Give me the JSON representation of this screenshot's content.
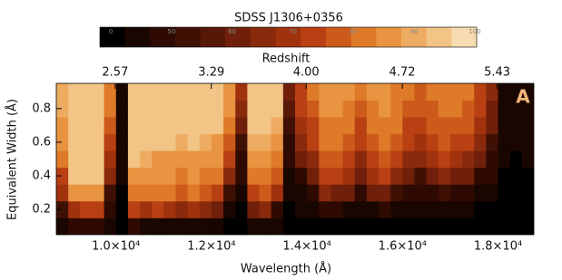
{
  "chart_data": {
    "type": "heatmap",
    "title": "SDSS J1306+0356",
    "x_label": "Wavelength (Å)",
    "y_label": "Equivalent Width (Å)",
    "x2_label": "Redshift",
    "annotation": "A",
    "xlim": [
      8750,
      18750
    ],
    "ylim": [
      0.05,
      0.95
    ],
    "x2lim": [
      2.129,
      5.705
    ],
    "xticks": [
      {
        "value": 10000,
        "label": "1.0×10⁴"
      },
      {
        "value": 12000,
        "label": "1.2×10⁴"
      },
      {
        "value": 14000,
        "label": "1.4×10⁴"
      },
      {
        "value": 16000,
        "label": "1.6×10⁴"
      },
      {
        "value": 18000,
        "label": "1.8×10⁴"
      }
    ],
    "x2ticks": [
      {
        "value": 2.57,
        "label": "2.57"
      },
      {
        "value": 3.29,
        "label": "3.29"
      },
      {
        "value": 4.0,
        "label": "4.00"
      },
      {
        "value": 4.72,
        "label": "4.72"
      },
      {
        "value": 5.43,
        "label": "5.43"
      }
    ],
    "yticks": [
      0.2,
      0.4,
      0.6,
      0.8
    ],
    "colorbar": {
      "ticks": [
        0,
        50,
        60,
        70,
        80,
        90,
        100
      ],
      "colors": [
        "#000000",
        "#1a0600",
        "#2e0a02",
        "#3f1004",
        "#581807",
        "#70200a",
        "#8a2a0c",
        "#a0320e",
        "#b94012",
        "#cc5a1a",
        "#de7a28",
        "#e89440",
        "#eeac62",
        "#f2c486",
        "#f6dcb0"
      ]
    },
    "xbins": [
      8750,
      9000,
      9250,
      9500,
      9750,
      10000,
      10250,
      10500,
      10750,
      11000,
      11250,
      11500,
      11750,
      12000,
      12250,
      12500,
      12750,
      13000,
      13250,
      13500,
      13750,
      14000,
      14250,
      14500,
      14750,
      15000,
      15250,
      15500,
      15750,
      16000,
      16250,
      16500,
      16750,
      17000,
      17250,
      17500,
      17750,
      18000,
      18250,
      18500,
      18750
    ],
    "ybins": [
      0.05,
      0.15,
      0.25,
      0.35,
      0.45,
      0.55,
      0.65,
      0.75,
      0.85,
      0.95
    ],
    "values": [
      [
        30,
        55,
        70,
        75,
        80,
        85,
        88,
        90,
        90
      ],
      [
        40,
        70,
        85,
        92,
        95,
        95,
        95,
        95,
        95
      ],
      [
        45,
        75,
        88,
        94,
        96,
        96,
        96,
        96,
        96
      ],
      [
        40,
        72,
        86,
        93,
        96,
        96,
        96,
        96,
        96
      ],
      [
        20,
        40,
        55,
        65,
        70,
        75,
        78,
        80,
        80
      ],
      [
        5,
        10,
        15,
        20,
        25,
        30,
        30,
        30,
        30
      ],
      [
        40,
        75,
        82,
        88,
        92,
        95,
        95,
        95,
        95
      ],
      [
        30,
        70,
        80,
        84,
        90,
        94,
        95,
        95,
        95
      ],
      [
        35,
        72,
        80,
        85,
        88,
        93,
        95,
        95,
        95
      ],
      [
        30,
        70,
        80,
        84,
        88,
        92,
        95,
        95,
        95
      ],
      [
        30,
        68,
        78,
        82,
        85,
        90,
        94,
        95,
        95
      ],
      [
        35,
        70,
        80,
        85,
        88,
        92,
        95,
        95,
        95
      ],
      [
        30,
        65,
        78,
        82,
        86,
        90,
        94,
        95,
        95
      ],
      [
        25,
        60,
        75,
        80,
        84,
        88,
        92,
        94,
        95
      ],
      [
        15,
        35,
        55,
        65,
        72,
        78,
        82,
        85,
        88
      ],
      [
        5,
        15,
        30,
        40,
        50,
        55,
        60,
        65,
        70
      ],
      [
        25,
        60,
        75,
        80,
        85,
        90,
        93,
        95,
        95
      ],
      [
        30,
        65,
        78,
        82,
        86,
        90,
        94,
        95,
        95
      ],
      [
        20,
        50,
        70,
        78,
        82,
        86,
        90,
        93,
        95
      ],
      [
        5,
        15,
        25,
        35,
        45,
        50,
        55,
        58,
        60
      ],
      [
        5,
        20,
        35,
        50,
        60,
        65,
        70,
        72,
        75
      ],
      [
        10,
        30,
        50,
        60,
        68,
        72,
        75,
        78,
        80
      ],
      [
        15,
        45,
        65,
        72,
        78,
        80,
        82,
        84,
        85
      ],
      [
        10,
        40,
        62,
        72,
        76,
        80,
        82,
        84,
        85
      ],
      [
        10,
        35,
        60,
        70,
        75,
        78,
        80,
        82,
        84
      ],
      [
        5,
        20,
        45,
        60,
        68,
        72,
        75,
        78,
        80
      ],
      [
        10,
        35,
        60,
        70,
        75,
        78,
        80,
        82,
        84
      ],
      [
        10,
        40,
        62,
        72,
        77,
        80,
        82,
        84,
        85
      ],
      [
        8,
        30,
        55,
        68,
        74,
        78,
        80,
        82,
        83
      ],
      [
        5,
        25,
        45,
        60,
        68,
        72,
        75,
        78,
        80
      ],
      [
        5,
        20,
        40,
        55,
        65,
        70,
        74,
        76,
        78
      ],
      [
        5,
        25,
        50,
        64,
        70,
        74,
        77,
        79,
        80
      ],
      [
        5,
        30,
        55,
        66,
        72,
        76,
        79,
        80,
        82
      ],
      [
        5,
        25,
        50,
        64,
        70,
        74,
        78,
        80,
        82
      ],
      [
        5,
        20,
        45,
        60,
        68,
        72,
        76,
        78,
        80
      ],
      [
        5,
        15,
        35,
        50,
        60,
        66,
        70,
        72,
        75
      ],
      [
        5,
        10,
        25,
        40,
        50,
        55,
        60,
        62,
        65
      ],
      [
        0,
        5,
        10,
        15,
        20,
        25,
        30,
        30,
        30
      ],
      [
        0,
        5,
        5,
        10,
        15,
        20,
        20,
        25,
        25
      ],
      [
        0,
        5,
        10,
        15,
        20,
        25,
        30,
        35,
        35
      ]
    ]
  }
}
